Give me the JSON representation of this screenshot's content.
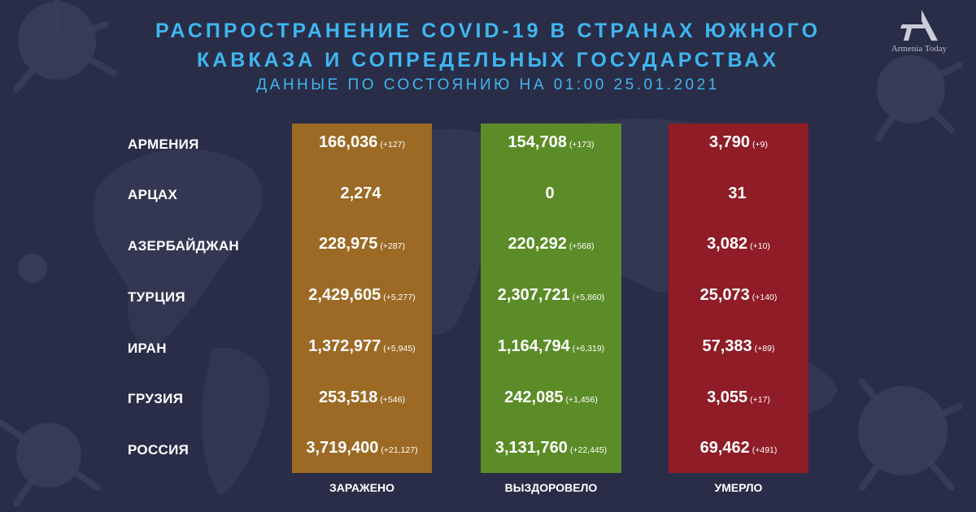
{
  "header": {
    "title_line1": "РАСПРОСТРАНЕНИЕ COVID-19 В СТРАНАХ ЮЖНОГО",
    "title_line2": "КАВКАЗА И СОПРЕДЕЛЬНЫХ ГОСУДАРСТВАХ",
    "subtitle": "ДАННЫЕ ПО СОСТОЯНИЮ НА 01:00  25.01.2021"
  },
  "logo": {
    "text": "Armenia Today"
  },
  "columns": {
    "infected": "ЗАРАЖЕНО",
    "recovered": "ВЫЗДОРОВЕЛО",
    "deaths": "УМЕРЛО"
  },
  "colors": {
    "background": "#2a2d47",
    "title": "#3fb6f0",
    "infected": "#9c6a25",
    "recovered": "#5b8c27",
    "deaths": "#8f1c26"
  },
  "rows": [
    {
      "country": "АРМЕНИЯ",
      "infected": "166,036",
      "infected_delta": "(+127)",
      "recovered": "154,708",
      "recovered_delta": "(+173)",
      "deaths": "3,790",
      "deaths_delta": "(+9)"
    },
    {
      "country": "АРЦАХ",
      "infected": "2,274",
      "infected_delta": "",
      "recovered": "0",
      "recovered_delta": "",
      "deaths": "31",
      "deaths_delta": ""
    },
    {
      "country": "АЗЕРБАЙДЖАН",
      "infected": "228,975",
      "infected_delta": "(+287)",
      "recovered": "220,292",
      "recovered_delta": "(+568)",
      "deaths": "3,082",
      "deaths_delta": "(+10)"
    },
    {
      "country": "ТУРЦИЯ",
      "infected": "2,429,605",
      "infected_delta": "(+5,277)",
      "recovered": "2,307,721",
      "recovered_delta": "(+5,860)",
      "deaths": "25,073",
      "deaths_delta": "(+140)"
    },
    {
      "country": "ИРАН",
      "infected": "1,372,977",
      "infected_delta": "(+5,945)",
      "recovered": "1,164,794",
      "recovered_delta": "(+6,319)",
      "deaths": "57,383",
      "deaths_delta": "(+89)"
    },
    {
      "country": "ГРУЗИЯ",
      "infected": "253,518",
      "infected_delta": "(+546)",
      "recovered": "242,085",
      "recovered_delta": "(+1,456)",
      "deaths": "3,055",
      "deaths_delta": "(+17)"
    },
    {
      "country": "РОССИЯ",
      "infected": "3,719,400",
      "infected_delta": "(+21,127)",
      "recovered": "3,131,760",
      "recovered_delta": "(+22,445)",
      "deaths": "69,462",
      "deaths_delta": "(+491)"
    }
  ]
}
